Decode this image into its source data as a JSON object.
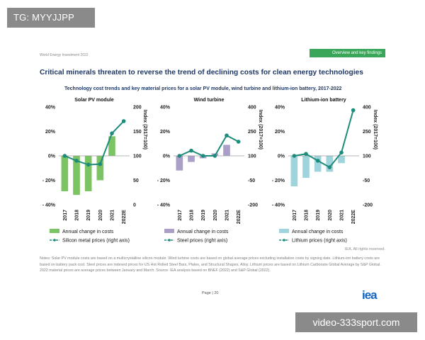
{
  "watermark_top": "TG: MYYJJPP",
  "watermark_bottom": "video-333sport.com",
  "header": {
    "publication": "World Energy Investment 2022",
    "section": "Overview and key findings"
  },
  "title": "Critical minerals threaten to reverse the trend of declining costs for clean energy technologies",
  "subtitle": "Technology cost trends and key material prices for a solar PV module, wind turbine and lithium-ion battery, 2017-2022",
  "colors": {
    "line": "#1e8c7a",
    "solar_bar": "#7cc463",
    "wind_bar": "#ab9fc8",
    "battery_bar": "#9fd4dc",
    "axis_text": "#222222"
  },
  "chart_data": [
    {
      "type": "bar",
      "title": "Solar PV module",
      "categories": [
        "2017",
        "2018",
        "2019",
        "2020",
        "2021",
        "2022E"
      ],
      "ylim": [
        -40,
        40
      ],
      "yticks": [
        "40%",
        "20%",
        "0%",
        "- 20%",
        "- 40%"
      ],
      "y2lim": [
        0,
        200
      ],
      "y2ticks": [
        "200",
        "150",
        "100",
        "50",
        "0"
      ],
      "y2label": "Index (2017=100)",
      "series": [
        {
          "name": "Annual change in costs",
          "type": "bar",
          "values": [
            -29,
            -32,
            -29,
            -20,
            16,
            null
          ]
        },
        {
          "name": "Silicon metal prices (right axis)",
          "type": "line",
          "axis": "right",
          "values": [
            100,
            90,
            82,
            83,
            146,
            171
          ]
        }
      ]
    },
    {
      "type": "bar",
      "title": "Wind turbine",
      "categories": [
        "2017",
        "2018",
        "2019",
        "2020",
        "2021",
        "2022E"
      ],
      "ylim": [
        -40,
        40
      ],
      "yticks": [
        "40%",
        "20%",
        "0%",
        "- 20%",
        "- 40%"
      ],
      "y2lim": [
        -200,
        400
      ],
      "y2ticks": [
        "400",
        "250",
        "100",
        "-50",
        "-200"
      ],
      "y2label": "Index (2017=100)",
      "series": [
        {
          "name": "Annual change in costs",
          "type": "bar",
          "values": [
            -12,
            -5,
            -2,
            2,
            9,
            null
          ]
        },
        {
          "name": "Steel prices (right axis)",
          "type": "line",
          "axis": "right",
          "values": [
            100,
            132,
            100,
            100,
            225,
            187
          ]
        }
      ]
    },
    {
      "type": "bar",
      "title": "Lithium-ion battery",
      "categories": [
        "2017",
        "2018",
        "2019",
        "2020",
        "2021",
        "2022E"
      ],
      "ylim": [
        -40,
        40
      ],
      "yticks": [
        "40%",
        "20%",
        "0%",
        "- 20%",
        "- 40%"
      ],
      "y2lim": [
        -200,
        400
      ],
      "y2ticks": [
        "400",
        "250",
        "100",
        "-50",
        "-200"
      ],
      "y2label": "Index (2017=100)",
      "series": [
        {
          "name": "Annual change in costs",
          "type": "bar",
          "values": [
            -25,
            -18,
            -13,
            -13,
            -6,
            null
          ]
        },
        {
          "name": "Lithium prices (right axis)",
          "type": "line",
          "axis": "right",
          "values": [
            100,
            112,
            70,
            30,
            120,
            380
          ]
        }
      ]
    }
  ],
  "notes": "Notes: Solar PV module costs are based on a multicrystalline silicon module. Wind turbine costs are based on global average prices excluding installation costs by signing date. Lithium-ion battery costs are based on battery pack cost. Steel prices are indexed prices for US Hot Rolled Steel Bars, Plates, and Structural Shapes, Alloy. Lithium prices are based on Lithium Carbonate Global Average by S&P Global. 2022 material prices are average prices between January and March. Source: IEA analysis based on BNEF (2022) and S&P Global (2022).",
  "rights": "IEA. All rights reserved.",
  "page_number": "Page | 20",
  "logo": "iea"
}
